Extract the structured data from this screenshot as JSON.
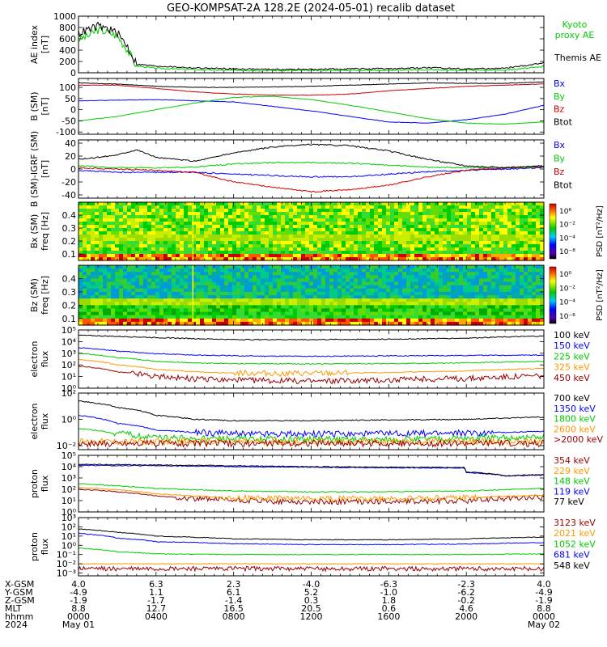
{
  "title": "GEO-KOMPSAT-2A 128.2E (2024-05-01) recalib dataset",
  "colors": {
    "black": "#000000",
    "blue": "#0000ff",
    "green": "#00cc00",
    "red": "#cc0000",
    "orange": "#ff9900",
    "darkred": "#990000",
    "aqua": "#00aaaa"
  },
  "chart_data": [
    {
      "type": "line",
      "id": "ae",
      "ylabel": "AE index",
      "yunit": "[nT]",
      "ylim": [
        0,
        1000
      ],
      "yticks": [
        0,
        200,
        400,
        600,
        800,
        1000
      ],
      "yticklabels": [
        "0",
        "200",
        "400",
        "600",
        "800",
        "1000"
      ],
      "series": [
        {
          "name": "Kyoto proxy AE",
          "color": "green",
          "x": [
            0,
            0.5,
            1,
            1.5,
            2,
            2.5,
            3,
            4,
            6,
            8,
            10,
            12,
            14,
            16,
            18,
            20,
            22,
            23.5,
            24
          ],
          "values": [
            600,
            650,
            760,
            720,
            650,
            420,
            120,
            80,
            55,
            45,
            40,
            40,
            45,
            45,
            55,
            45,
            50,
            90,
            120
          ]
        },
        {
          "name": "Themis AE",
          "color": "black",
          "x": [
            0,
            0.5,
            1,
            1.5,
            2,
            2.5,
            3,
            4,
            6,
            8,
            10,
            12,
            14,
            16,
            18,
            20,
            22,
            23.5,
            24
          ],
          "values": [
            700,
            760,
            820,
            780,
            700,
            480,
            150,
            120,
            85,
            70,
            60,
            60,
            70,
            70,
            90,
            70,
            80,
            150,
            180
          ]
        }
      ]
    },
    {
      "type": "line",
      "id": "bsm",
      "ylabel": "B (SM)",
      "yunit": "[nT]",
      "ylim": [
        -110,
        140
      ],
      "yticks": [
        -100,
        -50,
        0,
        50,
        100
      ],
      "yticklabels": [
        "-100",
        "-50",
        "0",
        "50",
        "100"
      ],
      "series": [
        {
          "name": "Bx",
          "color": "blue",
          "x": [
            0,
            4,
            8,
            12,
            14,
            16,
            18,
            20,
            22,
            24
          ],
          "values": [
            40,
            45,
            35,
            -5,
            -30,
            -55,
            -60,
            -45,
            -20,
            20
          ]
        },
        {
          "name": "By",
          "color": "green",
          "x": [
            0,
            2,
            4,
            6,
            8,
            10,
            12,
            14,
            16,
            18,
            20,
            22,
            24
          ],
          "values": [
            -50,
            -30,
            0,
            30,
            55,
            60,
            45,
            20,
            -10,
            -40,
            -60,
            -65,
            -55
          ]
        },
        {
          "name": "Bz",
          "color": "red",
          "x": [
            0,
            2,
            4,
            6,
            8,
            10,
            12,
            14,
            16,
            18,
            20,
            22,
            24
          ],
          "values": [
            110,
            110,
            95,
            80,
            70,
            65,
            65,
            70,
            85,
            95,
            105,
            110,
            115
          ]
        },
        {
          "name": "Btot",
          "color": "black",
          "x": [
            0,
            2,
            4,
            6,
            8,
            10,
            12,
            14,
            16,
            18,
            20,
            22,
            24
          ],
          "values": [
            120,
            115,
            105,
            100,
            100,
            102,
            105,
            110,
            115,
            120,
            118,
            118,
            125
          ]
        }
      ]
    },
    {
      "type": "line",
      "id": "bsmigrf",
      "ylabel": "B (SM)-IGRF (SM)",
      "yunit": "[nT]",
      "ylim": [
        -45,
        45
      ],
      "yticks": [
        -40,
        -20,
        0,
        20,
        40
      ],
      "yticklabels": [
        "-40",
        "-20",
        "0",
        "20",
        "40"
      ],
      "series": [
        {
          "name": "Bx",
          "color": "blue",
          "x": [
            0,
            2,
            4,
            6,
            8,
            10,
            12,
            14,
            16,
            18,
            20,
            22,
            24
          ],
          "values": [
            -2,
            -5,
            -5,
            -5,
            -8,
            -10,
            -12,
            -12,
            -8,
            -4,
            -2,
            0,
            2
          ]
        },
        {
          "name": "By",
          "color": "green",
          "x": [
            0,
            2,
            4,
            6,
            8,
            10,
            12,
            14,
            16,
            18,
            20,
            22,
            24
          ],
          "values": [
            5,
            2,
            2,
            3,
            8,
            10,
            10,
            9,
            6,
            3,
            2,
            2,
            3
          ]
        },
        {
          "name": "Bz",
          "color": "red",
          "x": [
            0,
            2,
            4,
            6,
            8,
            10,
            12,
            14,
            16,
            18,
            20,
            22,
            24
          ],
          "values": [
            2,
            0,
            -2,
            -5,
            -20,
            -28,
            -35,
            -32,
            -25,
            -12,
            -2,
            2,
            4
          ]
        },
        {
          "name": "Btot",
          "color": "black",
          "x": [
            0,
            1,
            2,
            3,
            4,
            6,
            8,
            10,
            12,
            14,
            16,
            18,
            20,
            22,
            24
          ],
          "values": [
            15,
            18,
            22,
            30,
            18,
            12,
            25,
            34,
            38,
            36,
            28,
            15,
            5,
            2,
            5
          ]
        }
      ]
    },
    {
      "type": "heatmap",
      "id": "bxspec",
      "ylabel": "Bx (SM)",
      "yunit": "freq [Hz]",
      "ylim": [
        0.05,
        0.5
      ],
      "yticks": [
        0.1,
        0.2,
        0.3,
        0.4
      ],
      "yticklabels": [
        "0.1",
        "0.2",
        "0.3",
        "0.4"
      ],
      "colorbar": {
        "label": "PSD [nT²/Hz]",
        "ticks": [
          "10⁶",
          "10⁻²",
          "10⁻⁴",
          "10⁻⁸"
        ]
      }
    },
    {
      "type": "heatmap",
      "id": "bzspec",
      "ylabel": "Bz (SM)",
      "yunit": "freq [Hz]",
      "ylim": [
        0.05,
        0.5
      ],
      "yticks": [
        0.1,
        0.2,
        0.3,
        0.4
      ],
      "yticklabels": [
        "0.1",
        "0.2",
        "0.3",
        "0.4"
      ],
      "colorbar": {
        "label": "PSD [nT²/Hz]",
        "ticks": [
          "10⁰",
          "10⁻²",
          "10⁻⁴",
          "10⁻⁶"
        ]
      }
    },
    {
      "type": "line",
      "id": "eflux1",
      "scale": "log",
      "ylabel": "electron",
      "yunit": "flux",
      "ylim": [
        1,
        100000
      ],
      "yticks": [
        1,
        10,
        100,
        1000,
        10000,
        100000
      ],
      "yticklabels": [
        "10⁰",
        "10¹",
        "10²",
        "10³",
        "10⁴",
        "10⁵"
      ],
      "series": [
        {
          "name": "100 keV",
          "color": "black",
          "x": [
            0,
            2,
            4,
            6,
            8,
            12,
            16,
            20,
            24
          ],
          "values": [
            35000,
            28000,
            22000,
            18000,
            15000,
            15000,
            16000,
            20000,
            30000
          ]
        },
        {
          "name": "150 keV",
          "color": "blue",
          "x": [
            0,
            2,
            4,
            6,
            8,
            12,
            16,
            20,
            24
          ],
          "values": [
            3000,
            1500,
            900,
            700,
            600,
            550,
            600,
            650,
            700
          ]
        },
        {
          "name": "225 keV",
          "color": "green",
          "x": [
            0,
            2,
            4,
            6,
            8,
            12,
            16,
            20,
            24
          ],
          "values": [
            1000,
            400,
            200,
            150,
            130,
            120,
            130,
            150,
            200
          ]
        },
        {
          "name": "325 keV",
          "color": "orange",
          "x": [
            0,
            2,
            4,
            6,
            8,
            12,
            16,
            20,
            24
          ],
          "values": [
            300,
            100,
            40,
            25,
            20,
            18,
            22,
            30,
            50
          ]
        },
        {
          "name": "450 keV",
          "color": "darkred",
          "x": [
            0,
            2,
            4,
            6,
            8,
            12,
            16,
            20,
            24
          ],
          "values": [
            80,
            25,
            10,
            6,
            5,
            4,
            5,
            7,
            12
          ]
        }
      ]
    },
    {
      "type": "line",
      "id": "eflux2",
      "scale": "log",
      "ylabel": "electron",
      "yunit": "flux",
      "ylim": [
        0.005,
        100
      ],
      "yticks": [
        0.01,
        1,
        100
      ],
      "yticklabels": [
        "10⁻²",
        "10⁰",
        "10²"
      ],
      "series": [
        {
          "name": "700 keV",
          "color": "black",
          "x": [
            0,
            2,
            4,
            6,
            8,
            12,
            16,
            20,
            24
          ],
          "values": [
            25,
            8,
            2,
            1,
            0.8,
            0.8,
            0.9,
            1,
            1.5
          ]
        },
        {
          "name": "1350 keV",
          "color": "blue",
          "x": [
            0,
            2,
            4,
            6,
            8,
            12,
            16,
            20,
            24
          ],
          "values": [
            2,
            0.5,
            0.15,
            0.1,
            0.08,
            0.08,
            0.08,
            0.09,
            0.12
          ]
        },
        {
          "name": "1800 keV",
          "color": "green",
          "x": [
            0,
            2,
            4,
            6,
            8,
            12,
            16,
            20,
            24
          ],
          "values": [
            0.2,
            0.08,
            0.04,
            0.035,
            0.03,
            0.03,
            0.03,
            0.035,
            0.04
          ]
        },
        {
          "name": "2600 keV",
          "color": "orange",
          "x": [
            0,
            4,
            8,
            12,
            16,
            20,
            24
          ],
          "values": [
            0.02,
            0.02,
            0.02,
            0.02,
            0.02,
            0.02,
            0.02
          ]
        },
        {
          "name": ">2000 keV",
          "color": "darkred",
          "x": [
            0,
            4,
            8,
            12,
            16,
            20,
            24
          ],
          "values": [
            0.015,
            0.015,
            0.015,
            0.015,
            0.015,
            0.015,
            0.015
          ]
        }
      ]
    },
    {
      "type": "line",
      "id": "pflux1",
      "scale": "log",
      "ylabel": "proton",
      "yunit": "flux",
      "ylim": [
        1,
        100000
      ],
      "yticks": [
        1,
        10,
        100,
        1000,
        10000,
        100000
      ],
      "yticklabels": [
        "10⁰",
        "10¹",
        "10²",
        "10³",
        "10⁴",
        "10⁵"
      ],
      "series": [
        {
          "name": "354 keV",
          "color": "darkred",
          "x": [
            0,
            2,
            4,
            6,
            8,
            12,
            16,
            20,
            24
          ],
          "values": [
            100,
            60,
            25,
            15,
            10,
            8,
            8,
            10,
            20
          ]
        },
        {
          "name": "229 keV",
          "color": "orange",
          "x": [
            0,
            2,
            4,
            6,
            8,
            12,
            16,
            20,
            24
          ],
          "values": [
            150,
            90,
            40,
            25,
            18,
            15,
            15,
            18,
            30
          ]
        },
        {
          "name": "148 keV",
          "color": "green",
          "x": [
            0,
            2,
            4,
            6,
            8,
            12,
            16,
            20,
            24
          ],
          "values": [
            300,
            200,
            120,
            90,
            70,
            60,
            60,
            70,
            120
          ]
        },
        {
          "name": "119 keV",
          "color": "blue",
          "x": [
            0,
            4,
            8,
            12,
            16,
            19.9,
            20,
            21.5,
            22,
            24
          ],
          "values": [
            13000,
            12000,
            10000,
            9000,
            8000,
            7500,
            3000,
            2000,
            1500,
            1800
          ]
        },
        {
          "name": "77 keV",
          "color": "black",
          "x": [
            0,
            4,
            8,
            12,
            16,
            19.9,
            20,
            21.5,
            22,
            24
          ],
          "values": [
            16000,
            14000,
            12000,
            10000,
            9000,
            8500,
            3500,
            2200,
            1600,
            2000
          ]
        }
      ]
    },
    {
      "type": "line",
      "id": "pflux2",
      "scale": "log",
      "ylabel": "proton",
      "yunit": "flux",
      "ylim": [
        0.0005,
        1000
      ],
      "yticks": [
        0.001,
        0.01,
        0.1,
        1,
        10,
        100,
        1000
      ],
      "yticklabels": [
        "10⁻³",
        "10⁻²",
        "10⁻¹",
        "10⁰",
        "10¹",
        "10²",
        "10³"
      ],
      "series": [
        {
          "name": "3123 keV",
          "color": "darkred",
          "x": [
            0,
            4,
            8,
            12,
            16,
            20,
            24
          ],
          "values": [
            0.003,
            0.003,
            0.003,
            0.003,
            0.003,
            0.003,
            0.003
          ]
        },
        {
          "name": "2021 keV",
          "color": "orange",
          "x": [
            0,
            4,
            8,
            12,
            16,
            20,
            24
          ],
          "values": [
            0.01,
            0.01,
            0.01,
            0.01,
            0.01,
            0.01,
            0.01
          ]
        },
        {
          "name": "1052 keV",
          "color": "green",
          "x": [
            0,
            2,
            4,
            8,
            12,
            16,
            20,
            24
          ],
          "values": [
            0.5,
            0.2,
            0.12,
            0.1,
            0.1,
            0.1,
            0.1,
            0.12
          ]
        },
        {
          "name": "681 keV",
          "color": "blue",
          "x": [
            0,
            2,
            4,
            8,
            12,
            16,
            20,
            24
          ],
          "values": [
            20,
            6,
            2.5,
            1.5,
            1.2,
            1.2,
            1.4,
            2
          ]
        },
        {
          "name": "548 keV",
          "color": "black",
          "x": [
            0,
            2,
            4,
            8,
            12,
            16,
            20,
            24
          ],
          "values": [
            60,
            25,
            10,
            5,
            4,
            4,
            5,
            8
          ]
        }
      ]
    }
  ],
  "orbit_table": {
    "rows": [
      {
        "label": "X-GSM",
        "values": [
          "4.0",
          "6.3",
          "2.3",
          "-4.0",
          "-6.3",
          "-2.3",
          "4.0"
        ]
      },
      {
        "label": "Y-GSM",
        "values": [
          "-4.9",
          "1.1",
          "6.1",
          "5.2",
          "-1.0",
          "-6.2",
          "-4.9"
        ]
      },
      {
        "label": "Z-GSM",
        "values": [
          "-1.9",
          "-1.7",
          "-1.4",
          "0.3",
          "1.8",
          "-0.2",
          "-1.9"
        ]
      },
      {
        "label": "MLT",
        "values": [
          "8.8",
          "12.7",
          "16.5",
          "20.5",
          "0.6",
          "4.6",
          "8.8"
        ]
      },
      {
        "label": "hhmm",
        "values": [
          "0000",
          "0400",
          "0800",
          "1200",
          "1600",
          "2000",
          "0000"
        ]
      },
      {
        "label": "2024",
        "values": [
          "May 01",
          "",
          "",
          "",
          "",
          "",
          "May 02"
        ]
      }
    ]
  }
}
